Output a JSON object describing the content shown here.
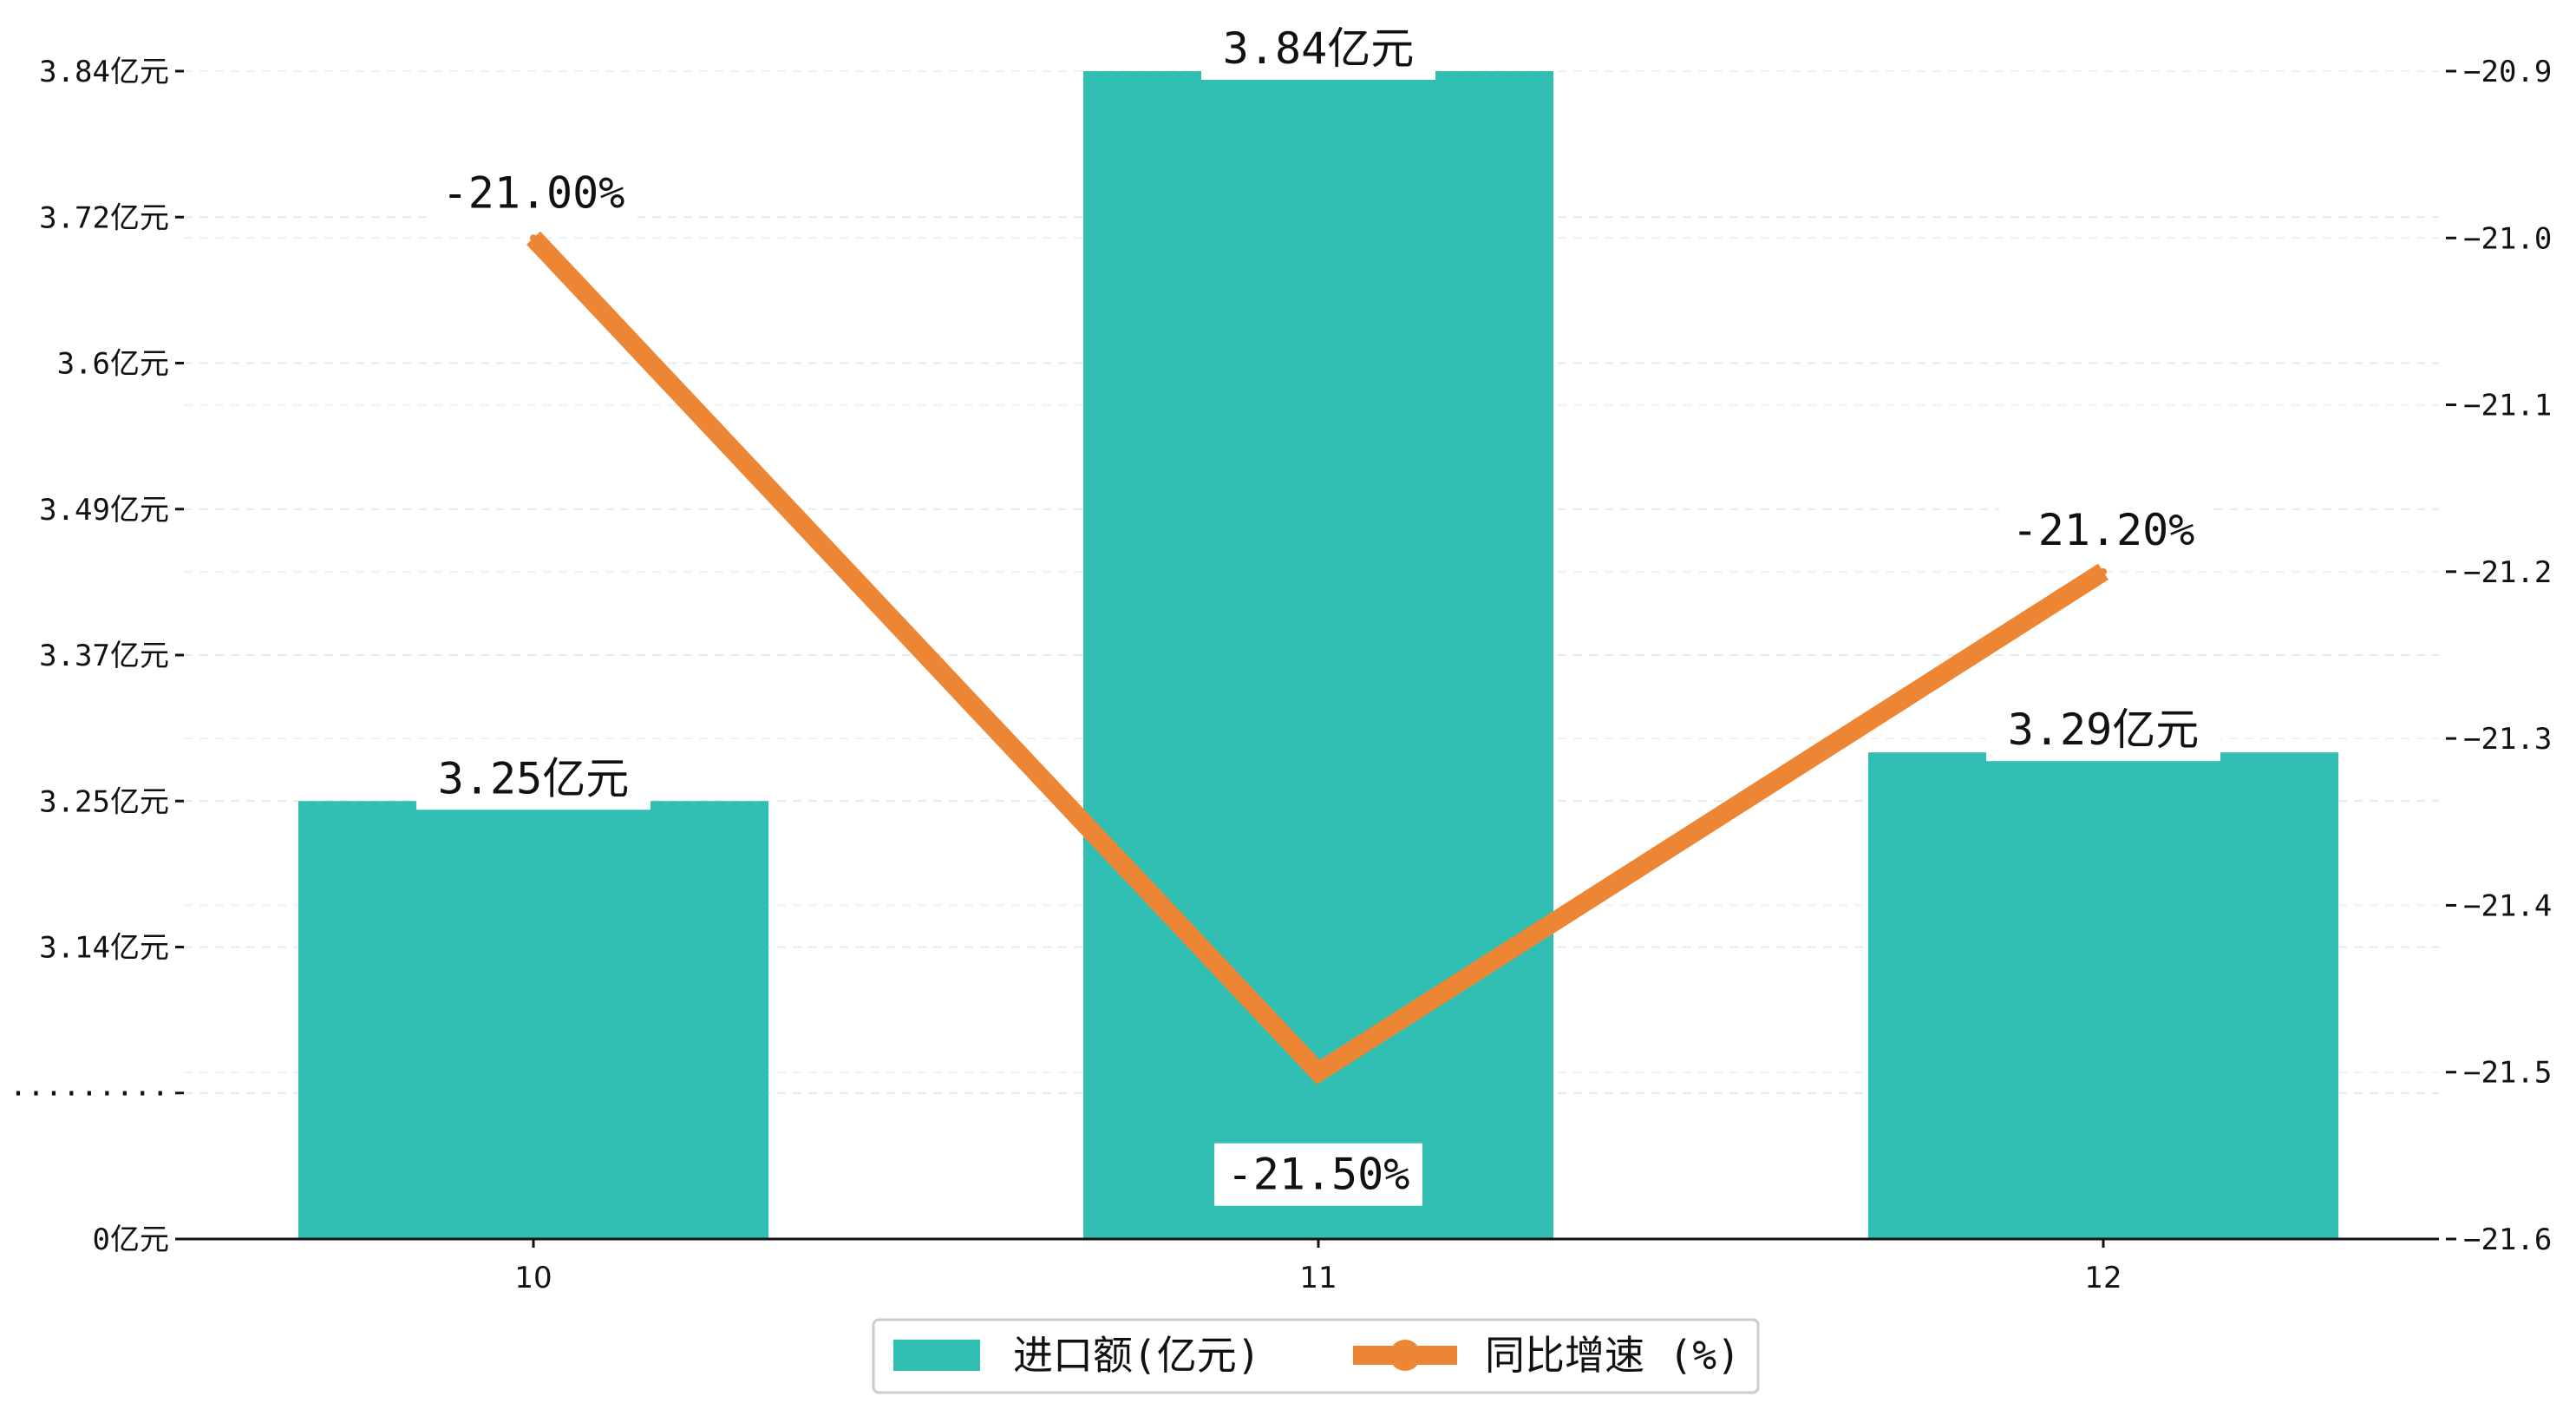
{
  "chart_data": {
    "type": "bar+line",
    "categories": [
      "10",
      "11",
      "12"
    ],
    "series": [
      {
        "name": "进口额(亿元)",
        "type": "bar",
        "axis": "left",
        "values": [
          3.25,
          3.84,
          3.29
        ],
        "labels": [
          "3.25亿元",
          "3.84亿元",
          "3.29亿元"
        ],
        "color": "#31BFB3"
      },
      {
        "name": "同比增速 (%)",
        "type": "line",
        "axis": "right",
        "values": [
          -21.0,
          -21.5,
          -21.2
        ],
        "labels": [
          "-21.00%",
          "-21.50%",
          "-21.20%"
        ],
        "color": "#ED8634"
      }
    ],
    "left_axis": {
      "ticks": [
        "0亿元",
        "·········",
        "3.14亿元",
        "3.25亿元",
        "3.37亿元",
        "3.49亿元",
        "3.6亿元",
        "3.72亿元",
        "3.84亿元"
      ]
    },
    "right_axis": {
      "ticks": [
        "-21.6",
        "-21.5",
        "-21.4",
        "-21.3",
        "-21.2",
        "-21.1",
        "-21.0",
        "-20.9"
      ],
      "ylim": [
        -21.6,
        -20.9
      ]
    },
    "legend": {
      "position": "bottom-center",
      "entries": [
        "进口额(亿元)",
        "同比增速 (%)"
      ]
    },
    "grid": true
  }
}
